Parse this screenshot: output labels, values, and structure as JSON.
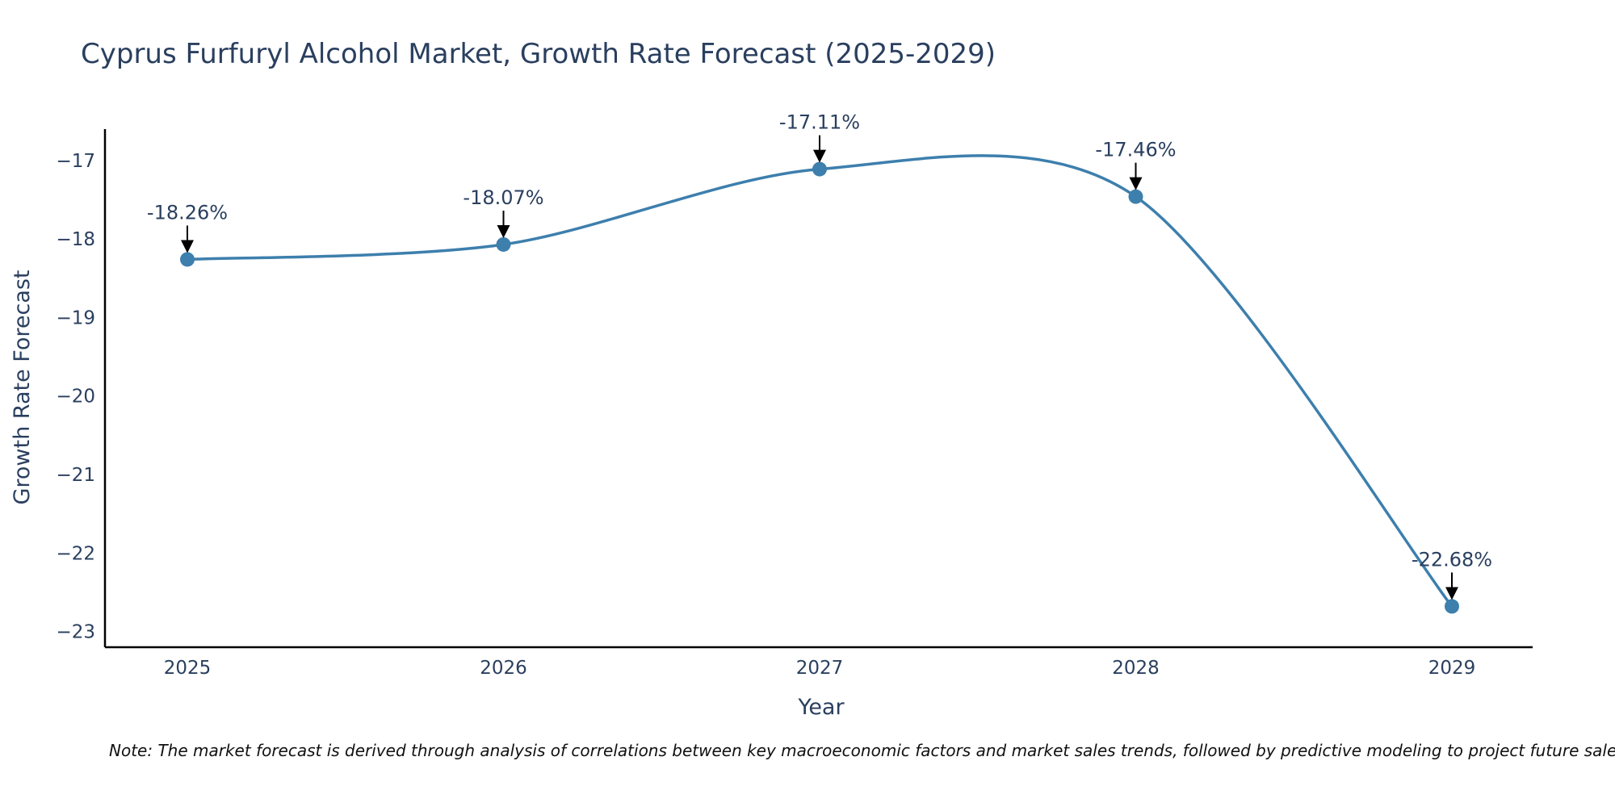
{
  "chart_data": {
    "type": "line",
    "title": "Cyprus Furfuryl Alcohol Market, Growth Rate Forecast (2025-2029)",
    "xlabel": "Year",
    "ylabel": "Growth Rate Forecast",
    "categories": [
      "2025",
      "2026",
      "2027",
      "2028",
      "2029"
    ],
    "series": [
      {
        "name": "Growth Rate Forecast",
        "values": [
          -18.26,
          -18.07,
          -17.11,
          -17.46,
          -22.68
        ]
      }
    ],
    "data_labels": [
      "-18.26%",
      "-18.07%",
      "-17.11%",
      "-17.46%",
      "-22.68%"
    ],
    "ylim": [
      -23.2,
      -16.6
    ],
    "yticks": [
      -17,
      -18,
      -19,
      -20,
      -21,
      -22,
      -23
    ],
    "ytick_labels": [
      "−17",
      "−18",
      "−19",
      "−20",
      "−21",
      "−22",
      "−23"
    ],
    "grid": false,
    "line_color": "#3d7fad",
    "smoothing": "spline"
  },
  "note": "Note: The market forecast is derived through analysis of correlations between key macroeconomic factors and market sales trends, followed by predictive modeling to project future sales"
}
